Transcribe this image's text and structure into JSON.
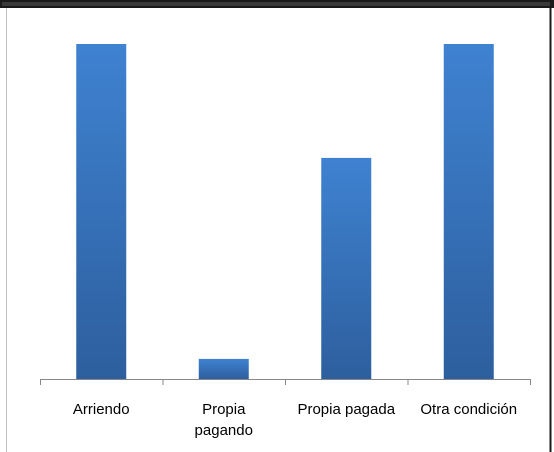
{
  "chart_data": {
    "type": "bar",
    "categories": [
      "Arriendo",
      "Propia pagando",
      "Propia pagada",
      "Otra condición"
    ],
    "category_label_lines": [
      [
        "Arriendo"
      ],
      [
        "Propia",
        "pagando"
      ],
      [
        "Propia pagada"
      ],
      [
        "Otra condición"
      ]
    ],
    "values": [
      100,
      6,
      66,
      100
    ],
    "ylim": [
      0,
      100
    ],
    "grid": false,
    "legend": "none",
    "title": "",
    "xlabel": "",
    "ylabel": "",
    "colors": {
      "bar_top": "#3f82d1",
      "bar_bottom": "#2d5f9e",
      "axis": "#888888",
      "frame": "#000000",
      "plot_border": "#bfbfbf"
    }
  }
}
